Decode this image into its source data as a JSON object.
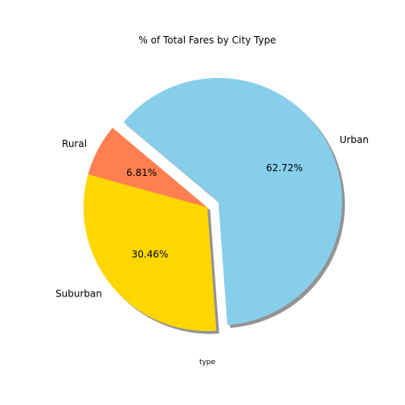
{
  "chart_data": {
    "type": "pie",
    "title": "% of Total Fares by City Type",
    "xlabel": "type",
    "start_angle_deg": 140,
    "shadow": true,
    "slices": [
      {
        "label": "Rural",
        "value": 6.81,
        "pct_text": "6.81%",
        "color": "#FF7F50",
        "explode": 0
      },
      {
        "label": "Suburban",
        "value": 30.46,
        "pct_text": "30.46%",
        "color": "#FFD700",
        "explode": 0
      },
      {
        "label": "Urban",
        "value": 62.72,
        "pct_text": "62.72%",
        "color": "#87CEEB",
        "explode": 0.1
      }
    ]
  }
}
